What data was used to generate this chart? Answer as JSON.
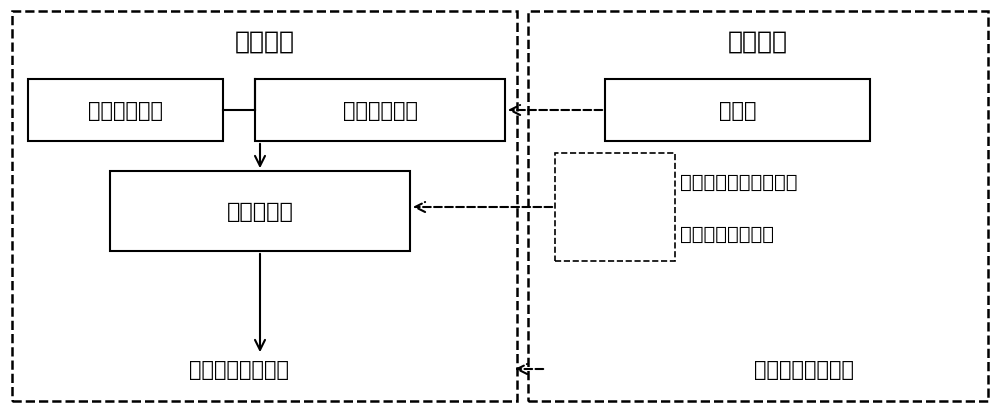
{
  "title_left": "传统工艺",
  "title_right": "工艺优化",
  "box_organic": "有机固废原料",
  "box_porous": "多孔介质材料",
  "box_reactor": "阴燃反应炉",
  "box_catalyst": "催化剂",
  "text_benefits_1": "有机固废处置速率提升",
  "text_benefits_2": "阴燃过程强度提升",
  "text_pollution_left": "烟气排放污染严重",
  "text_pollution_right": "烟气污染成分降低",
  "bg_color": "#ffffff",
  "box_color": "#ffffff",
  "border_color": "#000000",
  "text_color": "#000000",
  "font_size_title": 18,
  "font_size_box": 15,
  "font_size_text": 14
}
